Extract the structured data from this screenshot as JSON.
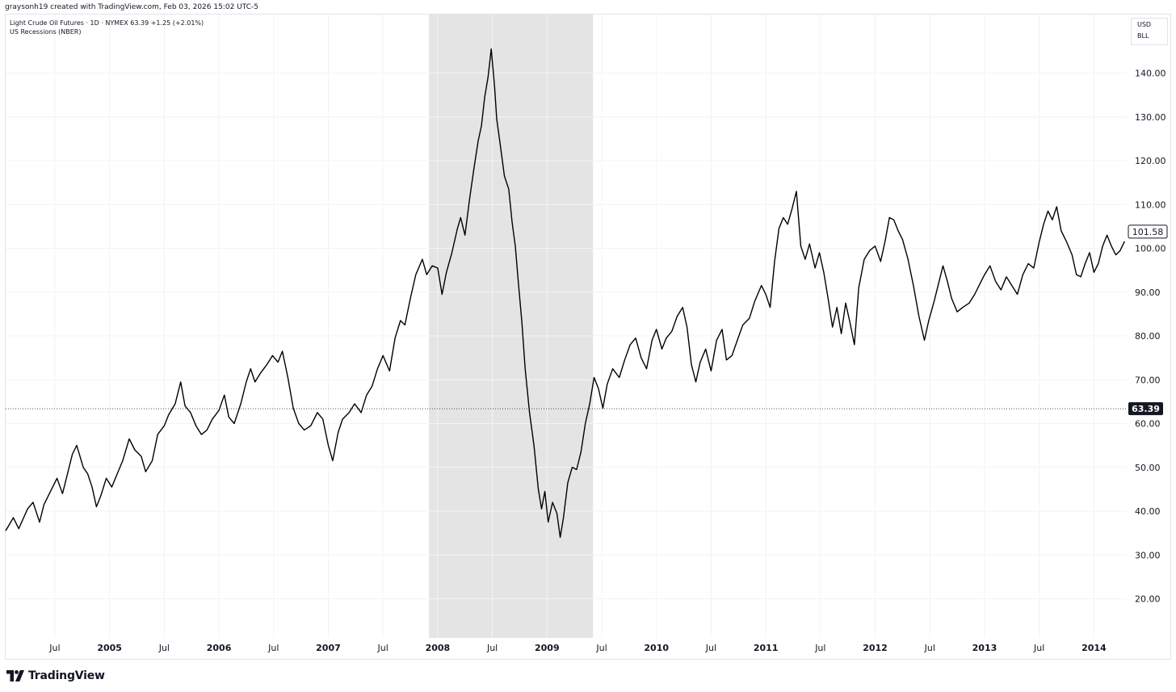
{
  "attribution": "graysonh19 created with TradingView.com, Feb 03, 2026 15:02 UTC-5",
  "legend": {
    "line1": "Light Crude Oil Futures · 1D · NYMEX  63.39  +1.25 (+2.01%)",
    "line2": "US Recessions (NBER)"
  },
  "units": {
    "currency": "USD",
    "unit": "BLL"
  },
  "brand": {
    "name": "TradingView",
    "logo_icon": "tradingview-logo-icon"
  },
  "chart_data": {
    "type": "line",
    "title": "",
    "xlabel": "",
    "ylabel": "",
    "ylim": [
      10,
      150
    ],
    "y_ticks": [
      20,
      30,
      40,
      50,
      60,
      70,
      80,
      90,
      100,
      110,
      120,
      130,
      140
    ],
    "y_tick_labels": [
      "20.00",
      "30.00",
      "40.00",
      "50.00",
      "60.00",
      "70.00",
      "80.00",
      "90.00",
      "100.00",
      "110.00",
      "120.00",
      "130.00",
      "140.00"
    ],
    "xlim": [
      2004.05,
      2014.3
    ],
    "x_ticks": [
      {
        "x": 2004.5,
        "label": "Jul",
        "bold": false
      },
      {
        "x": 2005.0,
        "label": "2005",
        "bold": true
      },
      {
        "x": 2005.5,
        "label": "Jul",
        "bold": false
      },
      {
        "x": 2006.0,
        "label": "2006",
        "bold": true
      },
      {
        "x": 2006.5,
        "label": "Jul",
        "bold": false
      },
      {
        "x": 2007.0,
        "label": "2007",
        "bold": true
      },
      {
        "x": 2007.5,
        "label": "Jul",
        "bold": false
      },
      {
        "x": 2008.0,
        "label": "2008",
        "bold": true
      },
      {
        "x": 2008.5,
        "label": "Jul",
        "bold": false
      },
      {
        "x": 2009.0,
        "label": "2009",
        "bold": true
      },
      {
        "x": 2009.5,
        "label": "Jul",
        "bold": false
      },
      {
        "x": 2010.0,
        "label": "2010",
        "bold": true
      },
      {
        "x": 2010.5,
        "label": "Jul",
        "bold": false
      },
      {
        "x": 2011.0,
        "label": "2011",
        "bold": true
      },
      {
        "x": 2011.5,
        "label": "Jul",
        "bold": false
      },
      {
        "x": 2012.0,
        "label": "2012",
        "bold": true
      },
      {
        "x": 2012.5,
        "label": "Jul",
        "bold": false
      },
      {
        "x": 2013.0,
        "label": "2013",
        "bold": true
      },
      {
        "x": 2013.5,
        "label": "Jul",
        "bold": false
      },
      {
        "x": 2014.0,
        "label": "2014",
        "bold": true
      }
    ],
    "recession": {
      "name": "US Recessions (NBER)",
      "start": 2007.92,
      "end": 2009.42,
      "color": "#e4e4e4"
    },
    "current_price": {
      "value": 63.39,
      "label": "63.39"
    },
    "last_price": {
      "value": 101.58,
      "label": "101.58"
    },
    "series": [
      {
        "name": "Light Crude Oil Futures",
        "color": "#000000",
        "points": [
          [
            2004.05,
            35.5
          ],
          [
            2004.12,
            38.5
          ],
          [
            2004.17,
            36.0
          ],
          [
            2004.25,
            40.5
          ],
          [
            2004.3,
            42.0
          ],
          [
            2004.36,
            37.5
          ],
          [
            2004.4,
            41.5
          ],
          [
            2004.46,
            44.5
          ],
          [
            2004.52,
            47.5
          ],
          [
            2004.57,
            44.0
          ],
          [
            2004.62,
            49.0
          ],
          [
            2004.66,
            53.0
          ],
          [
            2004.7,
            55.0
          ],
          [
            2004.76,
            50.0
          ],
          [
            2004.8,
            48.5
          ],
          [
            2004.84,
            45.5
          ],
          [
            2004.88,
            41.0
          ],
          [
            2004.92,
            43.5
          ],
          [
            2004.97,
            47.5
          ],
          [
            2005.02,
            45.5
          ],
          [
            2005.07,
            48.5
          ],
          [
            2005.12,
            51.5
          ],
          [
            2005.18,
            56.5
          ],
          [
            2005.23,
            54.0
          ],
          [
            2005.29,
            52.5
          ],
          [
            2005.33,
            49.0
          ],
          [
            2005.39,
            51.5
          ],
          [
            2005.44,
            57.5
          ],
          [
            2005.5,
            59.5
          ],
          [
            2005.54,
            62.0
          ],
          [
            2005.6,
            64.5
          ],
          [
            2005.65,
            69.5
          ],
          [
            2005.69,
            64.0
          ],
          [
            2005.74,
            62.5
          ],
          [
            2005.79,
            59.5
          ],
          [
            2005.84,
            57.5
          ],
          [
            2005.89,
            58.5
          ],
          [
            2005.94,
            61.0
          ],
          [
            2006.0,
            63.0
          ],
          [
            2006.05,
            66.5
          ],
          [
            2006.09,
            61.5
          ],
          [
            2006.14,
            60.0
          ],
          [
            2006.2,
            64.5
          ],
          [
            2006.25,
            69.5
          ],
          [
            2006.29,
            72.5
          ],
          [
            2006.33,
            69.5
          ],
          [
            2006.38,
            71.5
          ],
          [
            2006.44,
            73.5
          ],
          [
            2006.49,
            75.5
          ],
          [
            2006.54,
            74.0
          ],
          [
            2006.58,
            76.5
          ],
          [
            2006.63,
            70.5
          ],
          [
            2006.68,
            63.5
          ],
          [
            2006.73,
            60.0
          ],
          [
            2006.78,
            58.5
          ],
          [
            2006.84,
            59.5
          ],
          [
            2006.9,
            62.5
          ],
          [
            2006.95,
            61.0
          ],
          [
            2007.0,
            55.0
          ],
          [
            2007.04,
            51.5
          ],
          [
            2007.09,
            58.0
          ],
          [
            2007.13,
            61.0
          ],
          [
            2007.19,
            62.5
          ],
          [
            2007.24,
            64.5
          ],
          [
            2007.3,
            62.5
          ],
          [
            2007.35,
            66.5
          ],
          [
            2007.4,
            68.5
          ],
          [
            2007.45,
            72.5
          ],
          [
            2007.5,
            75.5
          ],
          [
            2007.56,
            72.0
          ],
          [
            2007.61,
            79.5
          ],
          [
            2007.66,
            83.5
          ],
          [
            2007.7,
            82.5
          ],
          [
            2007.75,
            88.5
          ],
          [
            2007.8,
            94.0
          ],
          [
            2007.86,
            97.5
          ],
          [
            2007.9,
            94.0
          ],
          [
            2007.95,
            96.0
          ],
          [
            2008.0,
            95.5
          ],
          [
            2008.04,
            89.5
          ],
          [
            2008.08,
            94.5
          ],
          [
            2008.13,
            99.0
          ],
          [
            2008.18,
            104.5
          ],
          [
            2008.21,
            107.0
          ],
          [
            2008.25,
            103.0
          ],
          [
            2008.29,
            111.0
          ],
          [
            2008.33,
            118.0
          ],
          [
            2008.37,
            124.5
          ],
          [
            2008.4,
            128.0
          ],
          [
            2008.43,
            134.5
          ],
          [
            2008.46,
            139.0
          ],
          [
            2008.49,
            145.5
          ],
          [
            2008.52,
            137.0
          ],
          [
            2008.54,
            129.5
          ],
          [
            2008.57,
            124.0
          ],
          [
            2008.61,
            116.5
          ],
          [
            2008.65,
            113.5
          ],
          [
            2008.68,
            106.0
          ],
          [
            2008.71,
            100.5
          ],
          [
            2008.74,
            91.5
          ],
          [
            2008.77,
            83.0
          ],
          [
            2008.8,
            72.5
          ],
          [
            2008.84,
            62.5
          ],
          [
            2008.88,
            55.0
          ],
          [
            2008.92,
            45.0
          ],
          [
            2008.95,
            40.5
          ],
          [
            2008.98,
            44.5
          ],
          [
            2009.01,
            37.5
          ],
          [
            2009.05,
            42.0
          ],
          [
            2009.09,
            39.5
          ],
          [
            2009.12,
            34.0
          ],
          [
            2009.15,
            38.5
          ],
          [
            2009.19,
            46.5
          ],
          [
            2009.23,
            50.0
          ],
          [
            2009.27,
            49.5
          ],
          [
            2009.31,
            53.5
          ],
          [
            2009.35,
            60.0
          ],
          [
            2009.39,
            64.5
          ],
          [
            2009.43,
            70.5
          ],
          [
            2009.47,
            68.0
          ],
          [
            2009.51,
            63.5
          ],
          [
            2009.55,
            69.0
          ],
          [
            2009.6,
            72.5
          ],
          [
            2009.66,
            70.5
          ],
          [
            2009.71,
            74.5
          ],
          [
            2009.76,
            78.0
          ],
          [
            2009.81,
            79.5
          ],
          [
            2009.86,
            75.0
          ],
          [
            2009.91,
            72.5
          ],
          [
            2009.96,
            79.0
          ],
          [
            2010.0,
            81.5
          ],
          [
            2010.05,
            77.0
          ],
          [
            2010.09,
            79.5
          ],
          [
            2010.14,
            81.0
          ],
          [
            2010.19,
            84.5
          ],
          [
            2010.24,
            86.5
          ],
          [
            2010.28,
            82.0
          ],
          [
            2010.32,
            73.5
          ],
          [
            2010.36,
            69.5
          ],
          [
            2010.4,
            74.0
          ],
          [
            2010.45,
            77.0
          ],
          [
            2010.5,
            72.0
          ],
          [
            2010.55,
            79.0
          ],
          [
            2010.6,
            81.5
          ],
          [
            2010.64,
            74.5
          ],
          [
            2010.69,
            75.5
          ],
          [
            2010.74,
            79.0
          ],
          [
            2010.79,
            82.5
          ],
          [
            2010.85,
            84.0
          ],
          [
            2010.9,
            88.0
          ],
          [
            2010.96,
            91.5
          ],
          [
            2011.0,
            89.5
          ],
          [
            2011.04,
            86.5
          ],
          [
            2011.08,
            97.0
          ],
          [
            2011.12,
            104.5
          ],
          [
            2011.16,
            107.0
          ],
          [
            2011.2,
            105.5
          ],
          [
            2011.24,
            109.0
          ],
          [
            2011.28,
            113.0
          ],
          [
            2011.32,
            100.5
          ],
          [
            2011.36,
            97.5
          ],
          [
            2011.4,
            101.0
          ],
          [
            2011.45,
            95.5
          ],
          [
            2011.49,
            99.0
          ],
          [
            2011.53,
            94.5
          ],
          [
            2011.57,
            88.5
          ],
          [
            2011.61,
            82.0
          ],
          [
            2011.65,
            86.5
          ],
          [
            2011.69,
            80.5
          ],
          [
            2011.73,
            87.5
          ],
          [
            2011.77,
            83.0
          ],
          [
            2011.81,
            78.0
          ],
          [
            2011.85,
            91.0
          ],
          [
            2011.9,
            97.5
          ],
          [
            2011.95,
            99.5
          ],
          [
            2012.0,
            100.5
          ],
          [
            2012.05,
            97.0
          ],
          [
            2012.09,
            101.5
          ],
          [
            2012.13,
            107.0
          ],
          [
            2012.17,
            106.5
          ],
          [
            2012.21,
            104.0
          ],
          [
            2012.25,
            102.0
          ],
          [
            2012.3,
            97.5
          ],
          [
            2012.35,
            91.5
          ],
          [
            2012.4,
            84.5
          ],
          [
            2012.45,
            79.0
          ],
          [
            2012.49,
            83.5
          ],
          [
            2012.54,
            88.0
          ],
          [
            2012.58,
            92.0
          ],
          [
            2012.62,
            96.0
          ],
          [
            2012.66,
            92.5
          ],
          [
            2012.7,
            88.5
          ],
          [
            2012.75,
            85.5
          ],
          [
            2012.8,
            86.5
          ],
          [
            2012.86,
            87.5
          ],
          [
            2012.91,
            89.5
          ],
          [
            2012.96,
            92.0
          ],
          [
            2013.0,
            94.0
          ],
          [
            2013.05,
            96.0
          ],
          [
            2013.1,
            92.5
          ],
          [
            2013.15,
            90.5
          ],
          [
            2013.2,
            93.5
          ],
          [
            2013.25,
            91.5
          ],
          [
            2013.3,
            89.5
          ],
          [
            2013.35,
            94.0
          ],
          [
            2013.4,
            96.5
          ],
          [
            2013.45,
            95.5
          ],
          [
            2013.5,
            101.5
          ],
          [
            2013.54,
            105.5
          ],
          [
            2013.58,
            108.5
          ],
          [
            2013.62,
            106.5
          ],
          [
            2013.66,
            109.5
          ],
          [
            2013.7,
            104.0
          ],
          [
            2013.75,
            101.5
          ],
          [
            2013.8,
            98.5
          ],
          [
            2013.84,
            94.0
          ],
          [
            2013.88,
            93.5
          ],
          [
            2013.92,
            96.5
          ],
          [
            2013.96,
            99.0
          ],
          [
            2014.0,
            94.5
          ],
          [
            2014.04,
            96.5
          ],
          [
            2014.08,
            100.5
          ],
          [
            2014.12,
            103.0
          ],
          [
            2014.16,
            100.5
          ],
          [
            2014.2,
            98.5
          ],
          [
            2014.24,
            99.5
          ],
          [
            2014.28,
            101.58
          ]
        ]
      }
    ]
  }
}
